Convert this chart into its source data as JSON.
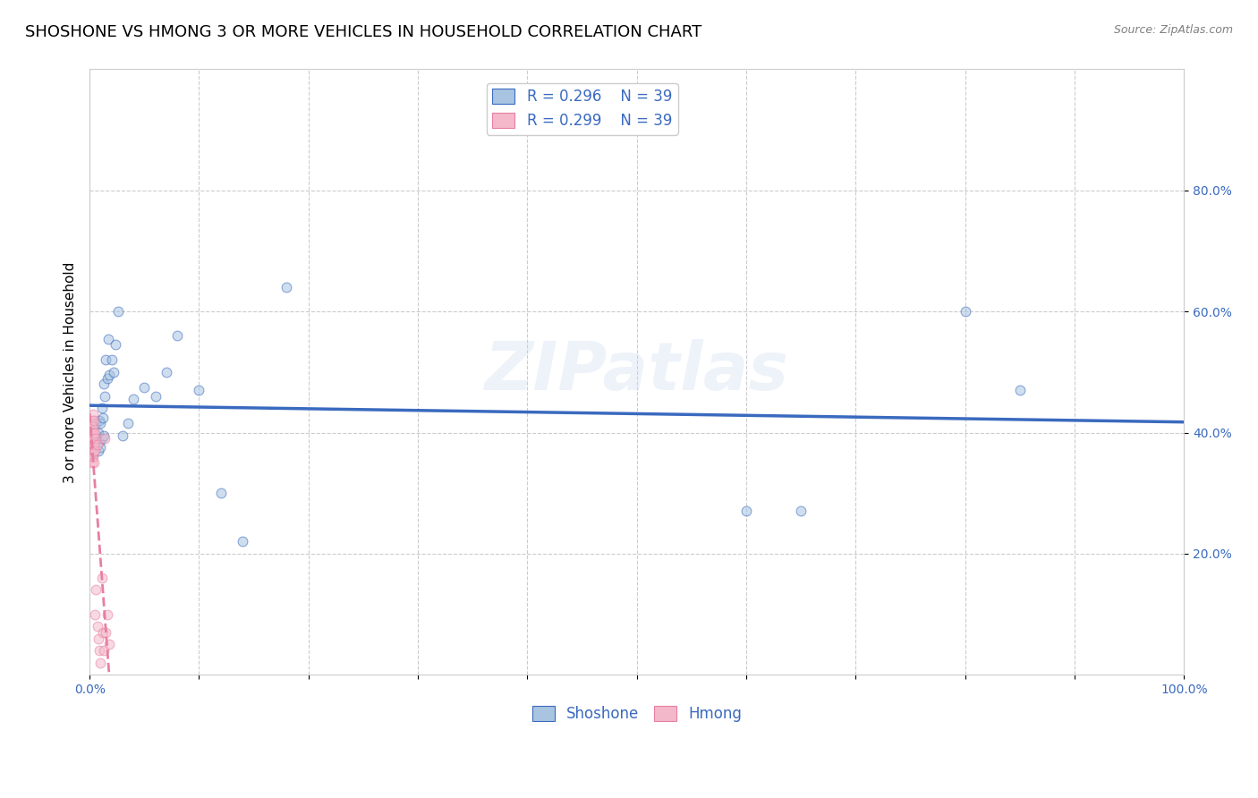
{
  "title": "SHOSHONE VS HMONG 3 OR MORE VEHICLES IN HOUSEHOLD CORRELATION CHART",
  "source": "Source: ZipAtlas.com",
  "ylabel": "3 or more Vehicles in Household",
  "xlim": [
    0,
    1.0
  ],
  "ylim": [
    0,
    1.0
  ],
  "shoshone_color": "#a8c4e0",
  "hmong_color": "#f4b8cb",
  "shoshone_line_color": "#3a6abf",
  "hmong_line_color": "#e87fa0",
  "legend_r_shoshone": "R = 0.296",
  "legend_n_shoshone": "N = 39",
  "legend_r_hmong": "R = 0.299",
  "legend_n_hmong": "N = 39",
  "watermark": "ZIPatlas",
  "shoshone_x": [
    0.003,
    0.005,
    0.006,
    0.006,
    0.008,
    0.008,
    0.009,
    0.009,
    0.01,
    0.01,
    0.011,
    0.011,
    0.012,
    0.013,
    0.013,
    0.014,
    0.015,
    0.016,
    0.017,
    0.018,
    0.02,
    0.022,
    0.024,
    0.026,
    0.03,
    0.035,
    0.04,
    0.05,
    0.06,
    0.07,
    0.08,
    0.1,
    0.12,
    0.14,
    0.18,
    0.6,
    0.65,
    0.8,
    0.85
  ],
  "shoshone_y": [
    0.365,
    0.395,
    0.38,
    0.415,
    0.4,
    0.37,
    0.42,
    0.385,
    0.415,
    0.375,
    0.44,
    0.39,
    0.425,
    0.48,
    0.395,
    0.46,
    0.52,
    0.49,
    0.555,
    0.495,
    0.52,
    0.5,
    0.545,
    0.6,
    0.395,
    0.415,
    0.455,
    0.475,
    0.46,
    0.5,
    0.56,
    0.47,
    0.3,
    0.22,
    0.64,
    0.27,
    0.27,
    0.6,
    0.47
  ],
  "hmong_x": [
    0.001,
    0.001,
    0.001,
    0.002,
    0.002,
    0.002,
    0.002,
    0.002,
    0.002,
    0.003,
    0.003,
    0.003,
    0.003,
    0.003,
    0.003,
    0.003,
    0.003,
    0.004,
    0.004,
    0.004,
    0.004,
    0.004,
    0.005,
    0.005,
    0.005,
    0.006,
    0.006,
    0.007,
    0.007,
    0.008,
    0.009,
    0.01,
    0.011,
    0.012,
    0.013,
    0.014,
    0.015,
    0.016,
    0.018
  ],
  "hmong_y": [
    0.39,
    0.37,
    0.4,
    0.41,
    0.38,
    0.4,
    0.36,
    0.42,
    0.35,
    0.4,
    0.38,
    0.41,
    0.37,
    0.43,
    0.39,
    0.36,
    0.38,
    0.4,
    0.37,
    0.42,
    0.38,
    0.35,
    0.4,
    0.37,
    0.1,
    0.39,
    0.14,
    0.38,
    0.08,
    0.06,
    0.04,
    0.02,
    0.16,
    0.07,
    0.04,
    0.39,
    0.07,
    0.1,
    0.05
  ],
  "title_fontsize": 13,
  "axis_label_fontsize": 11,
  "tick_fontsize": 10,
  "legend_fontsize": 12,
  "scatter_size": 60,
  "scatter_alpha": 0.55,
  "grid_color": "#cccccc",
  "background_color": "#ffffff"
}
